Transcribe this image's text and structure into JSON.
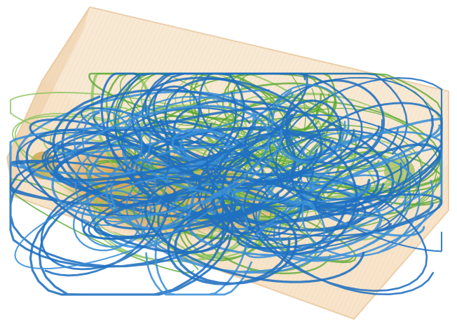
{
  "scene": {
    "subject": "3d-streamline-visualization",
    "colors": {
      "background": "#ffffff",
      "box_fill": "#f3d8b4",
      "box_edge": "#e8c49a",
      "box_top": "#f6e2c6",
      "box_side": "#efcfa6",
      "core_orange": "#d89a40",
      "blob_green": "#7fae3e",
      "streamline_blue": "#1f6fc0",
      "streamline_blue_light": "#3a8fd8",
      "streamline_green": "#5aa832",
      "streamline_green_light": "#8cc460"
    },
    "layers": [
      {
        "name": "volume-box",
        "color_key": "box_fill"
      },
      {
        "name": "orange-core",
        "color_key": "core_orange"
      },
      {
        "name": "green-streamlines",
        "color_key": "streamline_green"
      },
      {
        "name": "blue-streamlines",
        "color_key": "streamline_blue"
      }
    ]
  }
}
